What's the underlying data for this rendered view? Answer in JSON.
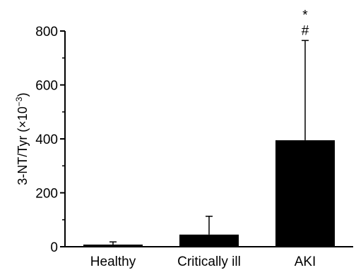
{
  "chart_data": {
    "type": "bar",
    "title": "",
    "xlabel": "",
    "ylabel": "3-NT/Tyr (×10",
    "ylabel_sup": "−3",
    "ylabel_close": ")",
    "ylim": [
      0,
      800
    ],
    "yticks": [
      0,
      200,
      400,
      600,
      800
    ],
    "categories": [
      "Healthy",
      "Critically ill",
      "AKI"
    ],
    "values": [
      8,
      45,
      395
    ],
    "error_upper": [
      18,
      113,
      765
    ],
    "annotations": [
      {
        "category": "AKI",
        "symbols": [
          "*",
          "#"
        ]
      }
    ],
    "bar_color": "#000000",
    "grid": false,
    "legend": "none"
  }
}
